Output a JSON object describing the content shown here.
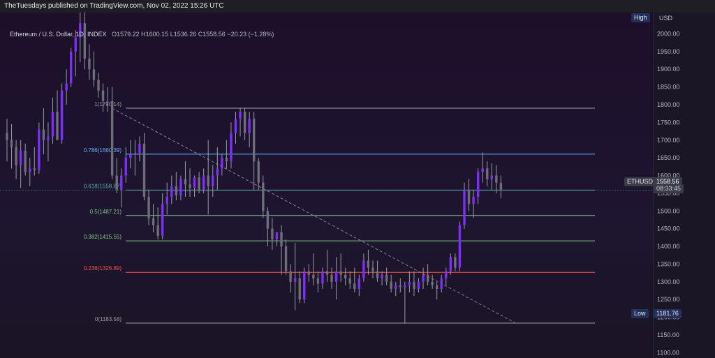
{
  "header": {
    "publisher": "TheTuesdays published on TradingView.com, Nov 02, 2022 15:26 UTC"
  },
  "legend": {
    "symbol": "Ethereum / U.S. Dollar, 1D, INDEX",
    "open": "O1579.22",
    "high": "H1600.15",
    "low": "L1536.26",
    "close": "C1558.56",
    "change": "−20.23 (−1.28%)"
  },
  "axis": {
    "currency": "USD",
    "high_label": "High",
    "low_label": "Low",
    "low_value": "1181.76",
    "price_tag_symbol": "ETHUSD",
    "price_tag_value": "1558.56",
    "price_tag_timer": "08:33:45"
  },
  "colors": {
    "up": "#7b2ff7",
    "down": "#6e6e78",
    "wick": "#9a9aa8",
    "fib_1": "#9e9e9e",
    "fib_786": "#64b5f6",
    "fib_618": "#4db6ac",
    "fib_5": "#81c784",
    "fib_382": "#81c784",
    "fib_236": "#ef5350",
    "fib_0": "#9e9e9e",
    "trendline": "#8a7aa0"
  },
  "chart_data": {
    "type": "candlestick",
    "title": "Ethereum / U.S. Dollar, 1D, INDEX",
    "ylabel": "USD",
    "ylim": [
      1085,
      2060
    ],
    "yticks": [
      "2000.00",
      "1950.00",
      "1900.00",
      "1850.00",
      "1800.00",
      "1750.00",
      "1700.00",
      "1650.00",
      "1600.00",
      "1550.00",
      "1500.00",
      "1450.00",
      "1400.00",
      "1350.00",
      "1300.00",
      "1250.00",
      "1200.00",
      "1150.00",
      "1100.00"
    ],
    "fib_levels": [
      {
        "label": "1(1790.14)",
        "price": 1790.14,
        "color_key": "fib_1"
      },
      {
        "label": "0.786(1660.39)",
        "price": 1660.39,
        "color_key": "fib_786"
      },
      {
        "label": "0.618(1558.87)",
        "price": 1558.87,
        "color_key": "fib_618"
      },
      {
        "label": "0.5(1487.21)",
        "price": 1487.21,
        "color_key": "fib_5"
      },
      {
        "label": "0.382(1415.55)",
        "price": 1415.55,
        "color_key": "fib_382"
      },
      {
        "label": "0.236(1326.89)",
        "price": 1326.89,
        "color_key": "fib_236"
      },
      {
        "label": "0(1183.58)",
        "price": 1183.58,
        "color_key": "fib_0"
      }
    ],
    "trendline": {
      "start": {
        "index": 23,
        "price": 1790
      },
      "end": {
        "index": 111,
        "price": 1185
      }
    },
    "candles": [
      {
        "o": 1720,
        "h": 1760,
        "l": 1640,
        "c": 1700
      },
      {
        "o": 1700,
        "h": 1745,
        "l": 1620,
        "c": 1680
      },
      {
        "o": 1680,
        "h": 1700,
        "l": 1590,
        "c": 1630
      },
      {
        "o": 1630,
        "h": 1700,
        "l": 1565,
        "c": 1670
      },
      {
        "o": 1670,
        "h": 1690,
        "l": 1600,
        "c": 1610
      },
      {
        "o": 1610,
        "h": 1650,
        "l": 1570,
        "c": 1620
      },
      {
        "o": 1620,
        "h": 1680,
        "l": 1600,
        "c": 1615
      },
      {
        "o": 1615,
        "h": 1750,
        "l": 1605,
        "c": 1730
      },
      {
        "o": 1730,
        "h": 1790,
        "l": 1660,
        "c": 1700
      },
      {
        "o": 1700,
        "h": 1750,
        "l": 1640,
        "c": 1710
      },
      {
        "o": 1710,
        "h": 1820,
        "l": 1690,
        "c": 1780
      },
      {
        "o": 1780,
        "h": 1840,
        "l": 1700,
        "c": 1700
      },
      {
        "o": 1700,
        "h": 1860,
        "l": 1690,
        "c": 1840
      },
      {
        "o": 1840,
        "h": 1900,
        "l": 1800,
        "c": 1860
      },
      {
        "o": 1860,
        "h": 1960,
        "l": 1850,
        "c": 1950
      },
      {
        "o": 1950,
        "h": 2010,
        "l": 1880,
        "c": 1990
      },
      {
        "o": 1990,
        "h": 2060,
        "l": 1920,
        "c": 2030
      },
      {
        "o": 2030,
        "h": 2060,
        "l": 1900,
        "c": 1930
      },
      {
        "o": 1930,
        "h": 1970,
        "l": 1870,
        "c": 1900
      },
      {
        "o": 1900,
        "h": 1950,
        "l": 1850,
        "c": 1870
      },
      {
        "o": 1870,
        "h": 1890,
        "l": 1820,
        "c": 1840
      },
      {
        "o": 1840,
        "h": 1860,
        "l": 1780,
        "c": 1810
      },
      {
        "o": 1810,
        "h": 1850,
        "l": 1780,
        "c": 1810
      },
      {
        "o": 1810,
        "h": 1850,
        "l": 1590,
        "c": 1600
      },
      {
        "o": 1600,
        "h": 1650,
        "l": 1550,
        "c": 1560
      },
      {
        "o": 1560,
        "h": 1620,
        "l": 1510,
        "c": 1600
      },
      {
        "o": 1600,
        "h": 1680,
        "l": 1580,
        "c": 1650
      },
      {
        "o": 1650,
        "h": 1700,
        "l": 1620,
        "c": 1660
      },
      {
        "o": 1660,
        "h": 1700,
        "l": 1600,
        "c": 1660
      },
      {
        "o": 1660,
        "h": 1710,
        "l": 1640,
        "c": 1690
      },
      {
        "o": 1690,
        "h": 1720,
        "l": 1530,
        "c": 1540
      },
      {
        "o": 1540,
        "h": 1560,
        "l": 1460,
        "c": 1480
      },
      {
        "o": 1480,
        "h": 1520,
        "l": 1440,
        "c": 1460
      },
      {
        "o": 1460,
        "h": 1510,
        "l": 1420,
        "c": 1430
      },
      {
        "o": 1430,
        "h": 1550,
        "l": 1420,
        "c": 1520
      },
      {
        "o": 1520,
        "h": 1580,
        "l": 1490,
        "c": 1540
      },
      {
        "o": 1540,
        "h": 1600,
        "l": 1520,
        "c": 1570
      },
      {
        "o": 1570,
        "h": 1610,
        "l": 1530,
        "c": 1545
      },
      {
        "o": 1545,
        "h": 1600,
        "l": 1530,
        "c": 1590
      },
      {
        "o": 1590,
        "h": 1640,
        "l": 1540,
        "c": 1575
      },
      {
        "o": 1575,
        "h": 1620,
        "l": 1540,
        "c": 1565
      },
      {
        "o": 1565,
        "h": 1600,
        "l": 1540,
        "c": 1595
      },
      {
        "o": 1595,
        "h": 1610,
        "l": 1550,
        "c": 1560
      },
      {
        "o": 1560,
        "h": 1620,
        "l": 1550,
        "c": 1600
      },
      {
        "o": 1600,
        "h": 1700,
        "l": 1490,
        "c": 1570
      },
      {
        "o": 1570,
        "h": 1630,
        "l": 1540,
        "c": 1600
      },
      {
        "o": 1600,
        "h": 1680,
        "l": 1560,
        "c": 1620
      },
      {
        "o": 1620,
        "h": 1660,
        "l": 1600,
        "c": 1650
      },
      {
        "o": 1650,
        "h": 1700,
        "l": 1620,
        "c": 1640
      },
      {
        "o": 1640,
        "h": 1750,
        "l": 1620,
        "c": 1720
      },
      {
        "o": 1720,
        "h": 1780,
        "l": 1690,
        "c": 1760
      },
      {
        "o": 1760,
        "h": 1790,
        "l": 1710,
        "c": 1780
      },
      {
        "o": 1780,
        "h": 1790,
        "l": 1700,
        "c": 1720
      },
      {
        "o": 1720,
        "h": 1780,
        "l": 1680,
        "c": 1760
      },
      {
        "o": 1760,
        "h": 1780,
        "l": 1560,
        "c": 1640
      },
      {
        "o": 1640,
        "h": 1650,
        "l": 1560,
        "c": 1580
      },
      {
        "o": 1580,
        "h": 1600,
        "l": 1480,
        "c": 1500
      },
      {
        "o": 1500,
        "h": 1510,
        "l": 1400,
        "c": 1450
      },
      {
        "o": 1450,
        "h": 1480,
        "l": 1390,
        "c": 1420
      },
      {
        "o": 1420,
        "h": 1440,
        "l": 1400,
        "c": 1440
      },
      {
        "o": 1440,
        "h": 1460,
        "l": 1320,
        "c": 1400
      },
      {
        "o": 1400,
        "h": 1420,
        "l": 1320,
        "c": 1330
      },
      {
        "o": 1330,
        "h": 1350,
        "l": 1270,
        "c": 1300
      },
      {
        "o": 1300,
        "h": 1410,
        "l": 1220,
        "c": 1310
      },
      {
        "o": 1310,
        "h": 1330,
        "l": 1240,
        "c": 1250
      },
      {
        "o": 1250,
        "h": 1340,
        "l": 1240,
        "c": 1330
      },
      {
        "o": 1330,
        "h": 1350,
        "l": 1300,
        "c": 1320
      },
      {
        "o": 1320,
        "h": 1380,
        "l": 1290,
        "c": 1310
      },
      {
        "o": 1310,
        "h": 1330,
        "l": 1270,
        "c": 1295
      },
      {
        "o": 1295,
        "h": 1340,
        "l": 1280,
        "c": 1330
      },
      {
        "o": 1330,
        "h": 1390,
        "l": 1300,
        "c": 1320
      },
      {
        "o": 1320,
        "h": 1340,
        "l": 1280,
        "c": 1300
      },
      {
        "o": 1300,
        "h": 1370,
        "l": 1250,
        "c": 1330
      },
      {
        "o": 1330,
        "h": 1380,
        "l": 1300,
        "c": 1320
      },
      {
        "o": 1320,
        "h": 1340,
        "l": 1290,
        "c": 1310
      },
      {
        "o": 1310,
        "h": 1330,
        "l": 1280,
        "c": 1295
      },
      {
        "o": 1295,
        "h": 1340,
        "l": 1270,
        "c": 1280
      },
      {
        "o": 1280,
        "h": 1320,
        "l": 1260,
        "c": 1310
      },
      {
        "o": 1310,
        "h": 1380,
        "l": 1300,
        "c": 1360
      },
      {
        "o": 1360,
        "h": 1390,
        "l": 1320,
        "c": 1340
      },
      {
        "o": 1340,
        "h": 1360,
        "l": 1310,
        "c": 1330
      },
      {
        "o": 1330,
        "h": 1360,
        "l": 1300,
        "c": 1310
      },
      {
        "o": 1310,
        "h": 1330,
        "l": 1290,
        "c": 1320
      },
      {
        "o": 1320,
        "h": 1340,
        "l": 1290,
        "c": 1300
      },
      {
        "o": 1300,
        "h": 1320,
        "l": 1270,
        "c": 1280
      },
      {
        "o": 1280,
        "h": 1300,
        "l": 1260,
        "c": 1290
      },
      {
        "o": 1290,
        "h": 1310,
        "l": 1270,
        "c": 1285
      },
      {
        "o": 1285,
        "h": 1300,
        "l": 1182,
        "c": 1290
      },
      {
        "o": 1290,
        "h": 1330,
        "l": 1270,
        "c": 1300
      },
      {
        "o": 1300,
        "h": 1330,
        "l": 1260,
        "c": 1280
      },
      {
        "o": 1280,
        "h": 1310,
        "l": 1270,
        "c": 1300
      },
      {
        "o": 1300,
        "h": 1340,
        "l": 1280,
        "c": 1320
      },
      {
        "o": 1320,
        "h": 1350,
        "l": 1290,
        "c": 1300
      },
      {
        "o": 1300,
        "h": 1320,
        "l": 1280,
        "c": 1290
      },
      {
        "o": 1290,
        "h": 1300,
        "l": 1250,
        "c": 1280
      },
      {
        "o": 1280,
        "h": 1320,
        "l": 1270,
        "c": 1310
      },
      {
        "o": 1310,
        "h": 1340,
        "l": 1290,
        "c": 1330
      },
      {
        "o": 1330,
        "h": 1380,
        "l": 1320,
        "c": 1370
      },
      {
        "o": 1370,
        "h": 1380,
        "l": 1330,
        "c": 1340
      },
      {
        "o": 1340,
        "h": 1470,
        "l": 1330,
        "c": 1460
      },
      {
        "o": 1460,
        "h": 1580,
        "l": 1450,
        "c": 1560
      },
      {
        "o": 1560,
        "h": 1590,
        "l": 1500,
        "c": 1520
      },
      {
        "o": 1520,
        "h": 1560,
        "l": 1480,
        "c": 1540
      },
      {
        "o": 1540,
        "h": 1620,
        "l": 1520,
        "c": 1610
      },
      {
        "o": 1610,
        "h": 1665,
        "l": 1580,
        "c": 1620
      },
      {
        "o": 1620,
        "h": 1640,
        "l": 1570,
        "c": 1590
      },
      {
        "o": 1590,
        "h": 1635,
        "l": 1560,
        "c": 1600
      },
      {
        "o": 1600,
        "h": 1630,
        "l": 1550,
        "c": 1580
      },
      {
        "o": 1579,
        "h": 1600,
        "l": 1536,
        "c": 1558
      }
    ]
  }
}
